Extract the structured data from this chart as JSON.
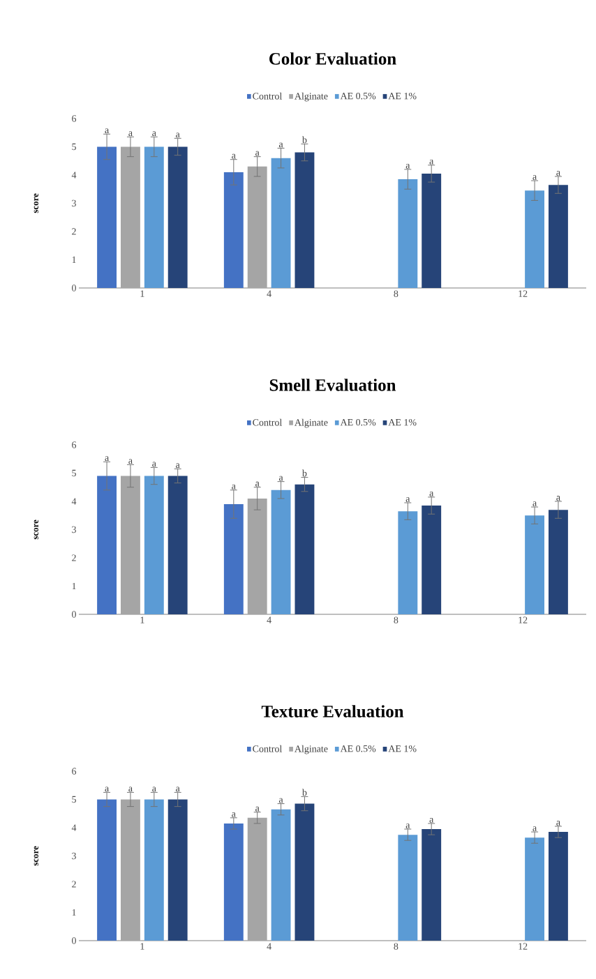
{
  "chart_data": [
    {
      "type": "bar",
      "title": "Color Evaluation",
      "ylabel": "score",
      "categories": [
        "1",
        "4",
        "8",
        "12"
      ],
      "ylim": [
        0,
        6
      ],
      "yticks": [
        0,
        1,
        2,
        3,
        4,
        5,
        6
      ],
      "legend": "top",
      "series": [
        {
          "name": "Control",
          "color": "#4472c4",
          "values": [
            5,
            4.1,
            null,
            null
          ],
          "errors": [
            0.45,
            0.45,
            null,
            null
          ],
          "value_labels": [
            "a",
            "a",
            null,
            null
          ]
        },
        {
          "name": "Alginate",
          "color": "#a5a5a5",
          "values": [
            5,
            4.3,
            null,
            null
          ],
          "errors": [
            0.35,
            0.35,
            null,
            null
          ],
          "value_labels": [
            "a",
            "a",
            null,
            null
          ]
        },
        {
          "name": "AE 0.5%",
          "color": "#5b9bd5",
          "values": [
            5,
            4.6,
            3.85,
            3.45
          ],
          "errors": [
            0.35,
            0.35,
            0.35,
            0.35
          ],
          "value_labels": [
            "a",
            "a",
            "a",
            "a"
          ]
        },
        {
          "name": "AE 1%",
          "color": "#264478",
          "values": [
            5,
            4.8,
            4.05,
            3.65
          ],
          "errors": [
            0.3,
            0.3,
            0.3,
            0.3
          ],
          "value_labels": [
            "a",
            "b",
            "a",
            "a"
          ]
        }
      ]
    },
    {
      "type": "bar",
      "title": "Smell Evaluation",
      "ylabel": "score",
      "categories": [
        "1",
        "4",
        "8",
        "12"
      ],
      "ylim": [
        0,
        6
      ],
      "yticks": [
        0,
        1,
        2,
        3,
        4,
        5,
        6
      ],
      "legend": "top",
      "series": [
        {
          "name": "Control",
          "color": "#4472c4",
          "values": [
            4.9,
            3.9,
            null,
            null
          ],
          "errors": [
            0.5,
            0.5,
            null,
            null
          ],
          "value_labels": [
            "a",
            "a",
            null,
            null
          ]
        },
        {
          "name": "Alginate",
          "color": "#a5a5a5",
          "values": [
            4.9,
            4.1,
            null,
            null
          ],
          "errors": [
            0.4,
            0.4,
            null,
            null
          ],
          "value_labels": [
            "a",
            "a",
            null,
            null
          ]
        },
        {
          "name": "AE 0.5%",
          "color": "#5b9bd5",
          "values": [
            4.9,
            4.4,
            3.65,
            3.5
          ],
          "errors": [
            0.3,
            0.3,
            0.3,
            0.3
          ],
          "value_labels": [
            "a",
            "a",
            "a",
            "a"
          ]
        },
        {
          "name": "AE 1%",
          "color": "#264478",
          "values": [
            4.9,
            4.6,
            3.85,
            3.7
          ],
          "errors": [
            0.25,
            0.25,
            0.3,
            0.3
          ],
          "value_labels": [
            "a",
            "b",
            "a",
            "a"
          ]
        }
      ]
    },
    {
      "type": "bar",
      "title": "Texture Evaluation",
      "ylabel": "score",
      "categories": [
        "1",
        "4",
        "8",
        "12"
      ],
      "ylim": [
        0,
        6
      ],
      "yticks": [
        0,
        1,
        2,
        3,
        4,
        5,
        6
      ],
      "legend": "top",
      "series": [
        {
          "name": "Control",
          "color": "#4472c4",
          "values": [
            5,
            4.15,
            null,
            null
          ],
          "errors": [
            0.25,
            0.2,
            null,
            null
          ],
          "value_labels": [
            "a",
            "a",
            null,
            null
          ]
        },
        {
          "name": "Alginate",
          "color": "#a5a5a5",
          "values": [
            5,
            4.35,
            null,
            null
          ],
          "errors": [
            0.25,
            0.2,
            null,
            null
          ],
          "value_labels": [
            "a",
            "a",
            null,
            null
          ]
        },
        {
          "name": "AE 0.5%",
          "color": "#5b9bd5",
          "values": [
            5,
            4.65,
            3.75,
            3.65
          ],
          "errors": [
            0.25,
            0.2,
            0.2,
            0.2
          ],
          "value_labels": [
            "a",
            "a",
            "a",
            "a"
          ]
        },
        {
          "name": "AE 1%",
          "color": "#264478",
          "values": [
            5,
            4.85,
            3.95,
            3.85
          ],
          "errors": [
            0.25,
            0.25,
            0.2,
            0.2
          ],
          "value_labels": [
            "a",
            "b",
            "a",
            "a"
          ]
        }
      ]
    }
  ]
}
